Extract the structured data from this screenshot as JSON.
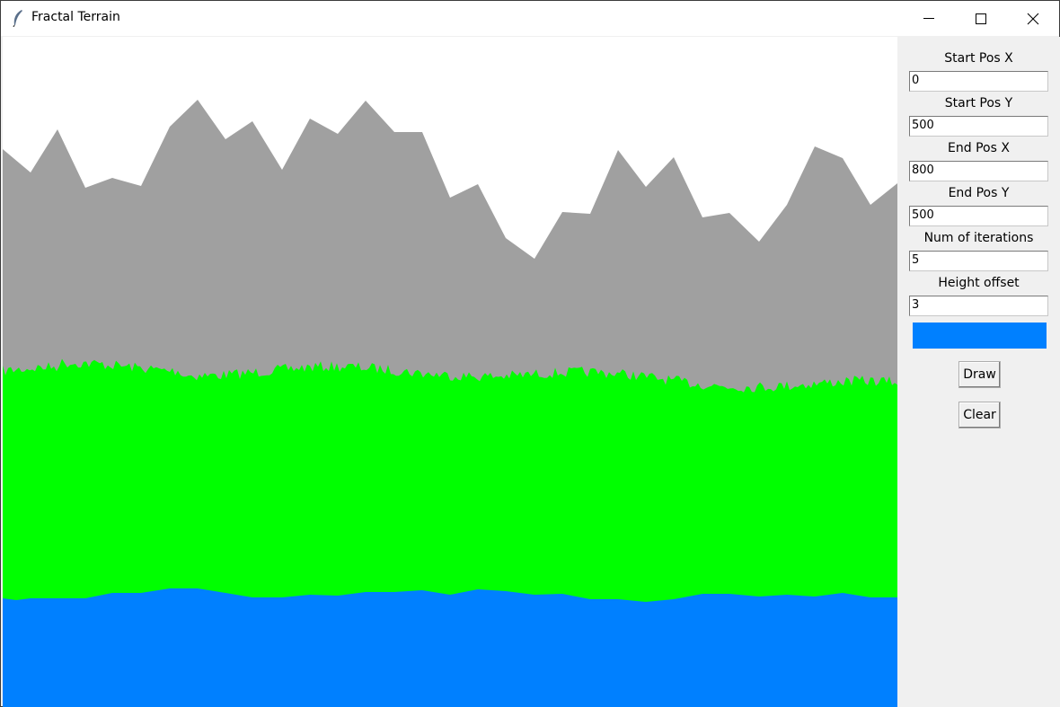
{
  "window": {
    "title": "Fractal Terrain",
    "icon": "feather-icon"
  },
  "colors": {
    "mountain": "#a0a0a0",
    "grass": "#00ff00",
    "water": "#0080ff",
    "swatch": "#0080ff"
  },
  "panel": {
    "fields": [
      {
        "label": "Start Pos X",
        "value": "0"
      },
      {
        "label": "Start Pos Y",
        "value": "500"
      },
      {
        "label": "End Pos X",
        "value": "800"
      },
      {
        "label": "End Pos Y",
        "value": "500"
      },
      {
        "label": "Num of iterations",
        "value": "5"
      },
      {
        "label": "Height offset",
        "value": "3"
      }
    ],
    "draw_label": "Draw",
    "clear_label": "Clear"
  }
}
